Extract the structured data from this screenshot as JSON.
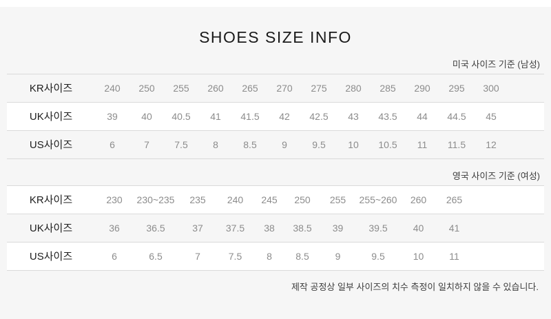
{
  "page": {
    "title": "SHOES SIZE INFO",
    "footer_note": "제작 공정상 일부 사이즈의 치수 측정이 일치하지 않을 수 있습니다."
  },
  "colors": {
    "page_background": "#f6f6f6",
    "highlight_row_background": "#ffffff",
    "border_line": "#dadada",
    "title_text": "#1a1a1a",
    "row_label_text": "#1d1d1d",
    "value_text": "#8c8c8c",
    "caption_text": "#3d3d3d"
  },
  "tables": [
    {
      "caption": "미국 사이즈 기준 (남성)",
      "rows": [
        {
          "label": "KR사이즈",
          "highlight": false,
          "values": [
            "240",
            "250",
            "255",
            "260",
            "265",
            "270",
            "275",
            "280",
            "285",
            "290",
            "295",
            "300"
          ]
        },
        {
          "label": "UK사이즈",
          "highlight": true,
          "values": [
            "39",
            "40",
            "40.5",
            "41",
            "41.5",
            "42",
            "42.5",
            "43",
            "43.5",
            "44",
            "44.5",
            "45"
          ]
        },
        {
          "label": "US사이즈",
          "highlight": false,
          "values": [
            "6",
            "7",
            "7.5",
            "8",
            "8.5",
            "9",
            "9.5",
            "10",
            "10.5",
            "11",
            "11.5",
            "12"
          ]
        }
      ]
    },
    {
      "caption": "영국 사이즈 기준 (여성)",
      "rows": [
        {
          "label": "KR사이즈",
          "highlight": true,
          "values": [
            "230",
            "230~235",
            "235",
            "240",
            "245",
            "250",
            "255",
            "255~260",
            "260",
            "265"
          ]
        },
        {
          "label": "UK사이즈",
          "highlight": false,
          "values": [
            "36",
            "36.5",
            "37",
            "37.5",
            "38",
            "38.5",
            "39",
            "39.5",
            "40",
            "41"
          ]
        },
        {
          "label": "US사이즈",
          "highlight": true,
          "values": [
            "6",
            "6.5",
            "7",
            "7.5",
            "8",
            "8.5",
            "9",
            "9.5",
            "10",
            "11"
          ]
        }
      ]
    }
  ]
}
